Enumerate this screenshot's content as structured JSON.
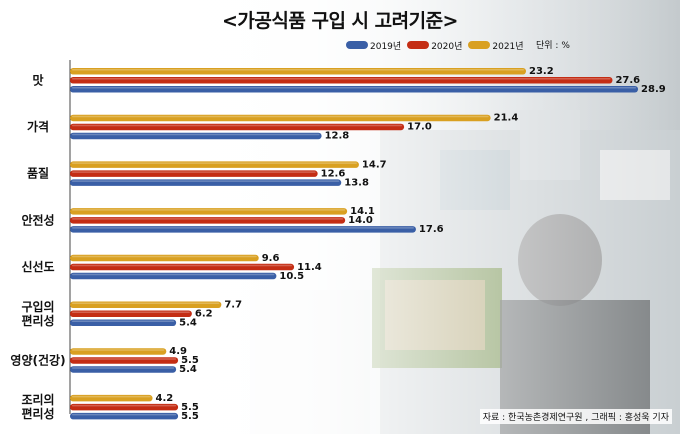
{
  "title": "<가공식품 구입 시 고려기준>",
  "unit_label": "단위 : %",
  "source": "자료 : 한국농촌경제연구원 , 그래픽 : 홍성욱 기자",
  "colors": {
    "2019년": "#3a5fa6",
    "2020년": "#c42d14",
    "2021년": "#d9a021"
  },
  "chart_data": {
    "type": "bar",
    "orientation": "horizontal",
    "categories": [
      "맛",
      "가격",
      "품질",
      "안전성",
      "신선도",
      "구입의\n편리성",
      "영양(건강)",
      "조리의\n편리성"
    ],
    "series": [
      {
        "name": "2021년",
        "values": [
          23.2,
          21.4,
          14.7,
          14.1,
          9.6,
          7.7,
          4.9,
          4.2
        ]
      },
      {
        "name": "2020년",
        "values": [
          27.6,
          17.0,
          12.6,
          14.0,
          11.4,
          6.2,
          5.5,
          5.5
        ]
      },
      {
        "name": "2019년",
        "values": [
          28.9,
          12.8,
          13.8,
          17.6,
          10.5,
          5.4,
          5.4,
          5.5
        ]
      }
    ],
    "legend_order": [
      "2019년",
      "2020년",
      "2021년"
    ],
    "legend_position": "top-right",
    "xlim": [
      0,
      29
    ],
    "grid": false
  }
}
